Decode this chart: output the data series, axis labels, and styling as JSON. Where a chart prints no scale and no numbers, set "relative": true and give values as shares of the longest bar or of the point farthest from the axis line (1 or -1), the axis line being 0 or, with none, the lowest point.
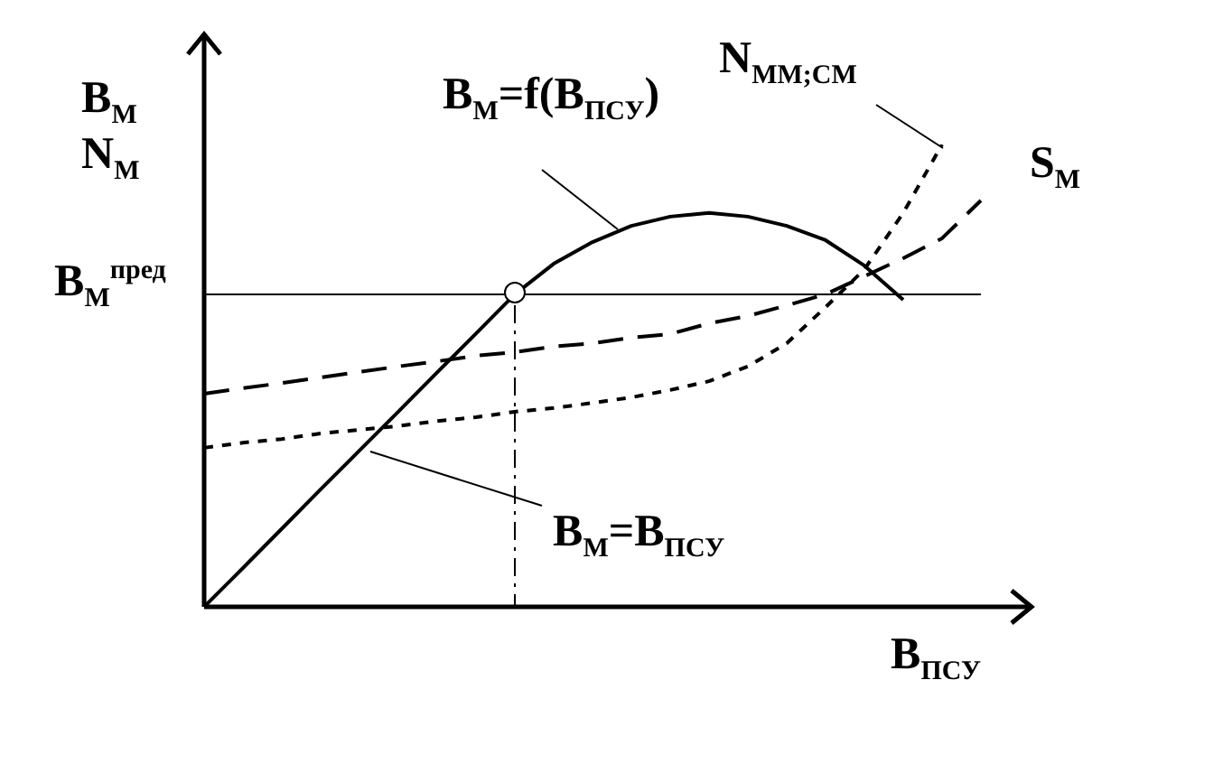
{
  "chart_data": {
    "type": "line",
    "relative": true,
    "xlabel": "B$_{ПСУ}$",
    "ylabel": "B$_{М}$ N$_{М}$",
    "legend": false,
    "categories": [
      null,
      null,
      null,
      null,
      null,
      null,
      null,
      null,
      null,
      null,
      null,
      null,
      null,
      null,
      null,
      null,
      null,
      null,
      null,
      null,
      null
    ],
    "series": [
      {
        "name": "B$_{М}$=B$_{ПСУ}$",
        "color": "#000000",
        "line_style": "solid",
        "values": [
          0,
          0.084,
          0.169,
          0.254,
          0.338,
          0.422,
          0.507,
          0.591,
          0.676,
          null,
          null,
          null,
          null,
          null,
          null,
          null,
          null,
          null,
          null,
          null,
          null
        ]
      },
      {
        "name": "B$_{М}$=f(B$_{ПСУ}$)",
        "color": "#000000",
        "line_style": "solid",
        "values": [
          null,
          null,
          null,
          null,
          null,
          null,
          null,
          null,
          0.676,
          0.742,
          0.789,
          0.824,
          0.844,
          0.852,
          0.844,
          0.824,
          0.793,
          0.738,
          0.664,
          null,
          null
        ]
      },
      {
        "name": "S$_{М}$",
        "color": "#000000",
        "line_style": "dashed",
        "values": [
          0.461,
          0.473,
          0.484,
          0.496,
          0.508,
          0.52,
          0.531,
          0.543,
          0.551,
          0.563,
          0.57,
          0.582,
          0.59,
          0.613,
          0.629,
          0.652,
          0.676,
          0.715,
          0.754,
          0.797,
          0.879
        ]
      },
      {
        "name": "N$_{ММ;СМ}$",
        "color": "#000000",
        "line_style": "dotted",
        "values": [
          0.344,
          0.355,
          0.363,
          0.375,
          0.383,
          0.391,
          0.402,
          0.41,
          0.422,
          0.43,
          0.441,
          0.453,
          0.469,
          0.488,
          0.52,
          0.57,
          0.648,
          0.73,
          0.852,
          1,
          null
        ]
      }
    ],
    "ref_lines": [
      {
        "axis": "y",
        "value": 0.676,
        "label": "B$_{М}$$^{пред}$",
        "line_style": "solid"
      }
    ]
  }
}
